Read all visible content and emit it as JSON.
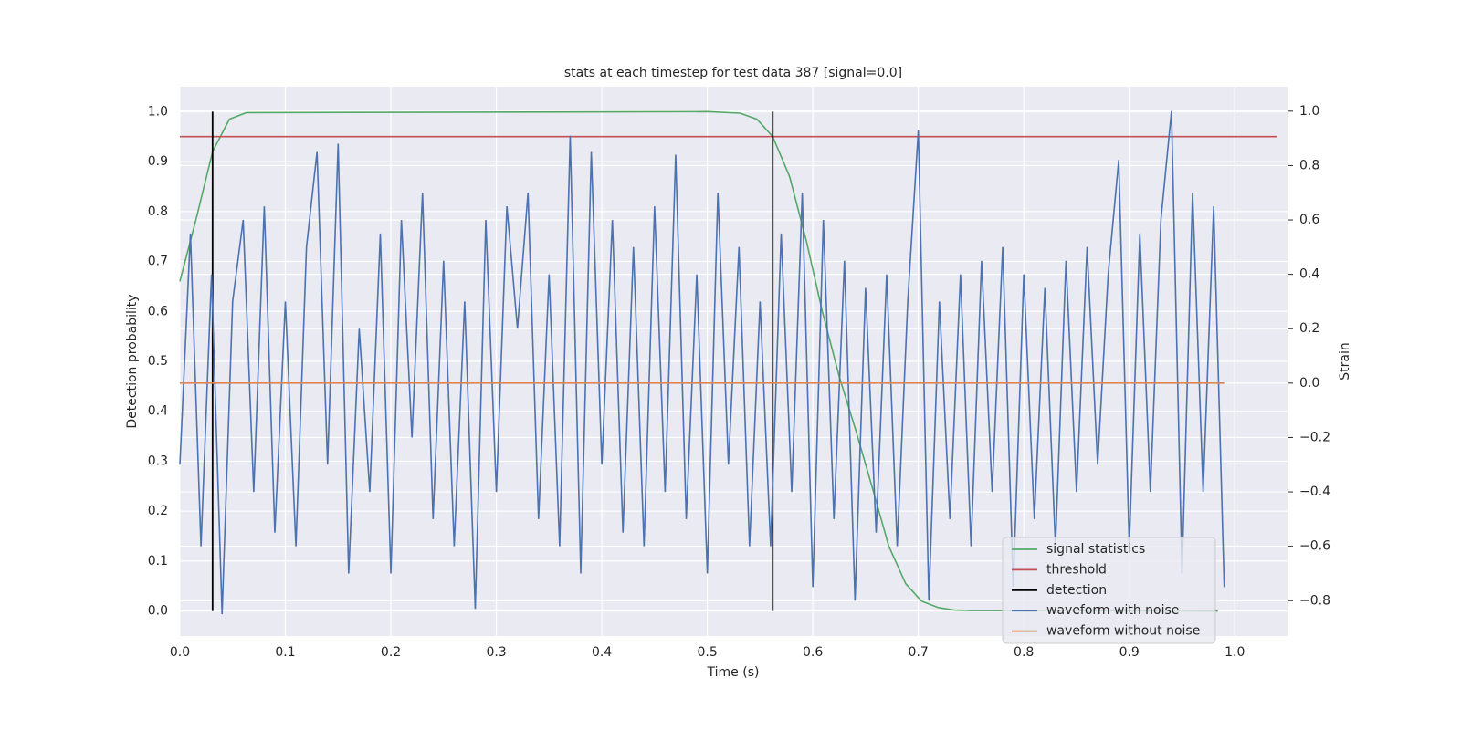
{
  "chart_data": {
    "type": "line",
    "title": "stats at each timestep for test data 387 [signal=0.0]",
    "x_label": "Time (s)",
    "y_label": "Detection probability",
    "y2_label": "Strain",
    "xlim": [
      0,
      1.05
    ],
    "ylim": [
      -0.05,
      1.05
    ],
    "y2lim": [
      -0.93,
      1.09
    ],
    "xticks": [
      {
        "value": 0,
        "label": "0.0"
      },
      0.1,
      0.2,
      0.3,
      0.4,
      0.5,
      0.6,
      0.7,
      0.8,
      0.9,
      {
        "value": 1,
        "label": "1.0"
      }
    ],
    "yticks": [
      {
        "value": 0,
        "label": "0.0"
      },
      0.1,
      0.2,
      0.3,
      0.4,
      0.5,
      0.6,
      0.7,
      0.8,
      0.9,
      {
        "value": 1,
        "label": "1.0"
      }
    ],
    "y2ticks": [
      {
        "value": -0.8,
        "label": "−0.8"
      },
      {
        "value": -0.6,
        "label": "−0.6"
      },
      {
        "value": -0.4,
        "label": "−0.4"
      },
      {
        "value": -0.2,
        "label": "−0.2"
      },
      {
        "value": 0,
        "label": "0.0"
      },
      0.2,
      0.4,
      0.6,
      0.8,
      {
        "value": 1,
        "label": "1.0"
      }
    ],
    "grid": true,
    "legend": "lower right",
    "series": [
      {
        "name": "signal statistics",
        "color": "#55a868",
        "kind": "line",
        "x": [
          0,
          0.016,
          0.031,
          0.047,
          0.063,
          0.5,
          0.531,
          0.547,
          0.562,
          0.578,
          0.594,
          0.609,
          0.625,
          0.641,
          0.656,
          0.672,
          0.688,
          0.703,
          0.719,
          0.734,
          0.75,
          0.984
        ],
        "values": [
          0.66,
          0.79,
          0.92,
          0.985,
          0.998,
          1.0,
          0.997,
          0.985,
          0.95,
          0.87,
          0.74,
          0.6,
          0.47,
          0.36,
          0.25,
          0.13,
          0.055,
          0.02,
          0.007,
          0.002,
          0.001,
          0.0
        ]
      },
      {
        "name": "threshold",
        "color": "#c44e52",
        "kind": "line",
        "x": [
          0,
          1.04
        ],
        "values": [
          0.95,
          0.95
        ]
      },
      {
        "name": "detection",
        "color": "#000000",
        "kind": "vline",
        "x": [
          0.031,
          0.562
        ],
        "values": [
          1.0,
          1.0
        ]
      },
      {
        "name": "waveform with noise",
        "color": "#4c72b0",
        "kind": "line",
        "axis": "y2",
        "x": [
          0,
          0.01,
          0.02,
          0.03,
          0.04,
          0.05,
          0.06,
          0.07,
          0.08,
          0.09,
          0.1,
          0.11,
          0.12,
          0.13,
          0.14,
          0.15,
          0.16,
          0.17,
          0.18,
          0.19,
          0.2,
          0.21,
          0.22,
          0.23,
          0.24,
          0.25,
          0.26,
          0.27,
          0.28,
          0.29,
          0.3,
          0.31,
          0.32,
          0.33,
          0.34,
          0.35,
          0.36,
          0.37,
          0.38,
          0.39,
          0.4,
          0.41,
          0.42,
          0.43,
          0.44,
          0.45,
          0.46,
          0.47,
          0.48,
          0.49,
          0.5,
          0.51,
          0.52,
          0.53,
          0.54,
          0.55,
          0.56,
          0.57,
          0.58,
          0.59,
          0.6,
          0.61,
          0.62,
          0.63,
          0.64,
          0.65,
          0.66,
          0.67,
          0.68,
          0.69,
          0.7,
          0.71,
          0.72,
          0.73,
          0.74,
          0.75,
          0.76,
          0.77,
          0.78,
          0.79,
          0.8,
          0.81,
          0.82,
          0.83,
          0.84,
          0.85,
          0.86,
          0.87,
          0.88,
          0.89,
          0.9,
          0.91,
          0.92,
          0.93,
          0.94,
          0.95,
          0.96,
          0.97,
          0.98,
          0.99
        ],
        "values": [
          -0.3,
          0.55,
          -0.6,
          0.4,
          -0.85,
          0.3,
          0.6,
          -0.4,
          0.65,
          -0.55,
          0.3,
          -0.6,
          0.5,
          0.85,
          -0.3,
          0.88,
          -0.7,
          0.2,
          -0.4,
          0.55,
          -0.7,
          0.6,
          -0.2,
          0.7,
          -0.5,
          0.45,
          -0.6,
          0.3,
          -0.83,
          0.6,
          -0.4,
          0.65,
          0.2,
          0.7,
          -0.5,
          0.4,
          -0.6,
          0.91,
          -0.7,
          0.85,
          -0.3,
          0.6,
          -0.55,
          0.5,
          -0.6,
          0.65,
          -0.4,
          0.84,
          -0.5,
          0.4,
          -0.7,
          0.7,
          -0.3,
          0.5,
          -0.6,
          0.3,
          -0.6,
          0.55,
          -0.4,
          0.7,
          -0.75,
          0.6,
          -0.5,
          0.45,
          -0.8,
          0.35,
          -0.55,
          0.4,
          -0.6,
          0.3,
          0.93,
          -0.8,
          0.3,
          -0.5,
          0.4,
          -0.6,
          0.45,
          -0.4,
          0.5,
          -0.75,
          0.4,
          -0.5,
          0.35,
          -0.6,
          0.45,
          -0.4,
          0.5,
          -0.3,
          0.4,
          0.82,
          -0.6,
          0.55,
          -0.4,
          0.6,
          1.0,
          -0.7,
          0.7,
          -0.4,
          0.65,
          -0.75
        ]
      },
      {
        "name": "waveform without noise",
        "color": "#dd8452",
        "kind": "line",
        "axis": "y2",
        "x": [
          0,
          0.99
        ],
        "values": [
          0,
          0
        ]
      }
    ]
  }
}
